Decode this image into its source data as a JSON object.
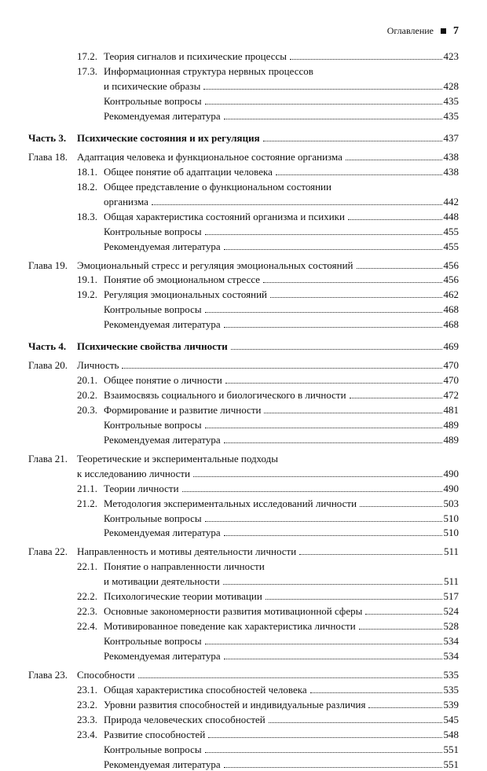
{
  "header": {
    "title": "Оглавление",
    "page": "7"
  },
  "rows": [
    {
      "type": "sub",
      "num": "17.2.",
      "text": "Теория сигналов и психические процессы",
      "page": "423"
    },
    {
      "type": "sub-wrap",
      "num": "17.3.",
      "text1": "Информационная структура нервных процессов",
      "text2": "и психические образы",
      "page": "428"
    },
    {
      "type": "plain",
      "text": "Контрольные вопросы",
      "page": "435"
    },
    {
      "type": "plain",
      "text": "Рекомендуемая литература",
      "page": "435"
    },
    {
      "type": "top",
      "gap": "l",
      "label": "Часть  3.",
      "text": "Психические состояния и их регуляция",
      "page": "437",
      "bold": true
    },
    {
      "type": "top",
      "gap": "m",
      "label": "Глава 18.",
      "text": "Адаптация человека и функциональное состояние организма",
      "page": "438"
    },
    {
      "type": "sub",
      "num": "18.1.",
      "text": "Общее понятие об адаптации человека",
      "page": "438"
    },
    {
      "type": "sub-wrap",
      "num": "18.2.",
      "text1": "Общее представление о функциональном состоянии",
      "text2": "организма",
      "page": "442"
    },
    {
      "type": "sub",
      "num": "18.3.",
      "text": "Общая характеристика состояний организма и психики",
      "page": "448"
    },
    {
      "type": "plain",
      "text": "Контрольные вопросы",
      "page": "455"
    },
    {
      "type": "plain",
      "text": "Рекомендуемая литература",
      "page": "455"
    },
    {
      "type": "top",
      "gap": "m",
      "label": "Глава 19.",
      "text": "Эмоциональный стресс и регуляция эмоциональных состояний",
      "page": "456"
    },
    {
      "type": "sub",
      "num": "19.1.",
      "text": "Понятие об эмоциональном стрессе",
      "page": "456"
    },
    {
      "type": "sub",
      "num": "19.2.",
      "text": "Регуляция эмоциональных состояний",
      "page": "462"
    },
    {
      "type": "plain",
      "text": "Контрольные вопросы",
      "page": "468"
    },
    {
      "type": "plain",
      "text": "Рекомендуемая литература",
      "page": "468"
    },
    {
      "type": "top",
      "gap": "l",
      "label": "Часть  4.",
      "text": "Психические свойства личности",
      "page": "469",
      "bold": true
    },
    {
      "type": "top",
      "gap": "m",
      "label": "Глава 20.",
      "text": "Личность",
      "page": "470"
    },
    {
      "type": "sub",
      "num": "20.1.",
      "text": "Общее понятие о личности",
      "page": "470"
    },
    {
      "type": "sub",
      "num": "20.2.",
      "text": "Взаимосвязь социального и биологического в личности",
      "page": "472"
    },
    {
      "type": "sub",
      "num": "20.3.",
      "text": "Формирование и развитие личности",
      "page": "481"
    },
    {
      "type": "plain",
      "text": "Контрольные вопросы",
      "page": "489"
    },
    {
      "type": "plain",
      "text": "Рекомендуемая литература",
      "page": "489"
    },
    {
      "type": "top-wrap",
      "gap": "m",
      "label": "Глава 21.",
      "text1": "Теоретические и экспериментальные подходы",
      "text2": "к исследованию личности",
      "page": "490"
    },
    {
      "type": "sub",
      "num": "21.1.",
      "text": "Теории личности",
      "page": "490"
    },
    {
      "type": "sub",
      "num": "21.2.",
      "text": "Методология экспериментальных исследований личности",
      "page": "503"
    },
    {
      "type": "plain",
      "text": "Контрольные вопросы",
      "page": "510"
    },
    {
      "type": "plain",
      "text": "Рекомендуемая литература",
      "page": "510"
    },
    {
      "type": "top",
      "gap": "m",
      "label": "Глава 22.",
      "text": "Направленность и мотивы деятельности личности",
      "page": "511"
    },
    {
      "type": "sub-wrap",
      "num": "22.1.",
      "text1": "Понятие о направленности личности",
      "text2": "и мотивации деятельности",
      "page": "511"
    },
    {
      "type": "sub",
      "num": "22.2.",
      "text": "Психологические теории мотивации",
      "page": "517"
    },
    {
      "type": "sub",
      "num": "22.3.",
      "text": "Основные закономерности развития мотивационной сферы",
      "page": "524"
    },
    {
      "type": "sub",
      "num": "22.4.",
      "text": "Мотивированное поведение как характеристика личности",
      "page": "528"
    },
    {
      "type": "plain",
      "text": "Контрольные вопросы",
      "page": "534"
    },
    {
      "type": "plain",
      "text": "Рекомендуемая литература",
      "page": "534"
    },
    {
      "type": "top",
      "gap": "m",
      "label": "Глава 23.",
      "text": "Способности",
      "page": "535"
    },
    {
      "type": "sub",
      "num": "23.1.",
      "text": "Общая характеристика способностей человека",
      "page": "535"
    },
    {
      "type": "sub",
      "num": "23.2.",
      "text": "Уровни развития способностей и индивидуальные различия",
      "page": "539"
    },
    {
      "type": "sub",
      "num": "23.3.",
      "text": "Природа человеческих способностей",
      "page": "545"
    },
    {
      "type": "sub",
      "num": "23.4.",
      "text": "Развитие способностей",
      "page": "548"
    },
    {
      "type": "plain",
      "text": "Контрольные вопросы",
      "page": "551"
    },
    {
      "type": "plain",
      "text": "Рекомендуемая литература",
      "page": "551"
    }
  ]
}
